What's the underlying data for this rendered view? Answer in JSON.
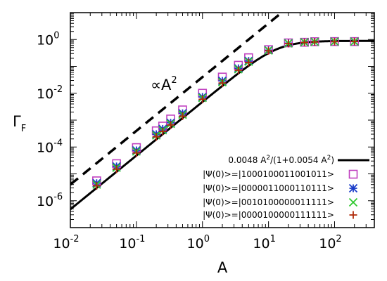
{
  "chart_data": {
    "type": "scatter",
    "xlabel": "A",
    "ylabel": "Γ",
    "ylabel_sub": "F",
    "xscale": "log",
    "yscale": "log",
    "xlim": [
      0.01,
      400
    ],
    "ylim": [
      1e-07,
      10
    ],
    "grid": false,
    "legend_position": "bottom-right",
    "x_ticks": [
      {
        "base": "10",
        "exp": "-2"
      },
      {
        "base": "10",
        "exp": "-1"
      },
      {
        "base": "10",
        "exp": "0"
      },
      {
        "base": "10",
        "exp": "1"
      },
      {
        "base": "10",
        "exp": "2"
      }
    ],
    "y_ticks": [
      {
        "base": "10",
        "exp": "-6"
      },
      {
        "base": "10",
        "exp": "-4"
      },
      {
        "base": "10",
        "exp": "-2"
      },
      {
        "base": "10",
        "exp": "0"
      }
    ],
    "annotation": {
      "prefix": "∝A",
      "exp": "2"
    },
    "fit_line": {
      "label": "0.0048 A²/(1+0.0054 A²)",
      "label_parts": [
        "0.0048 A",
        "2",
        "/(1+0.0054 A",
        "2",
        ")"
      ],
      "coef_a": 0.0048,
      "coef_b": 0.0054,
      "color": "#000000"
    },
    "reference_line": {
      "description": "proportional to A^2",
      "coef": 0.04,
      "style": "dashed",
      "color": "#000000"
    },
    "series": [
      {
        "name": "|Ψ(0)>=|1000100011001011>",
        "marker": "square",
        "color": "#c040c0",
        "x": [
          0.025,
          0.05,
          0.1,
          0.2,
          0.25,
          0.33,
          0.5,
          1,
          2,
          3.5,
          5,
          10,
          20,
          35,
          50,
          100,
          200
        ],
        "y": [
          5.5e-06,
          2.4e-05,
          9.5e-05,
          0.0004,
          0.0006,
          0.0011,
          0.0024,
          0.01,
          0.04,
          0.11,
          0.21,
          0.42,
          0.75,
          0.79,
          0.83,
          0.84,
          0.84
        ]
      },
      {
        "name": "|Ψ(0)>=|0000011000110111>",
        "marker": "asterisk",
        "color": "#1a3cc8",
        "x": [
          0.025,
          0.05,
          0.1,
          0.2,
          0.25,
          0.33,
          0.5,
          1,
          2,
          3.5,
          5,
          10,
          20,
          35,
          50,
          100,
          200
        ],
        "y": [
          4.5e-06,
          1.9e-05,
          7.5e-05,
          0.0003,
          0.00047,
          0.0008,
          0.0018,
          0.0073,
          0.029,
          0.085,
          0.16,
          0.4,
          0.73,
          0.79,
          0.82,
          0.84,
          0.84
        ]
      },
      {
        "name": "|Ψ(0)>=|0010100000011111>",
        "marker": "cross",
        "color": "#2ec82e",
        "x": [
          0.025,
          0.05,
          0.1,
          0.2,
          0.25,
          0.33,
          0.5,
          1,
          2,
          3.5,
          5,
          10,
          20,
          35,
          50,
          100,
          200
        ],
        "y": [
          4e-06,
          1.7e-05,
          6.8e-05,
          0.00027,
          0.00042,
          0.00073,
          0.0016,
          0.0067,
          0.026,
          0.078,
          0.15,
          0.39,
          0.72,
          0.79,
          0.82,
          0.84,
          0.84
        ]
      },
      {
        "name": "|Ψ(0)>=|0000100000111111>",
        "marker": "plus",
        "color": "#b02a0a",
        "x": [
          0.025,
          0.05,
          0.1,
          0.2,
          0.25,
          0.33,
          0.5,
          1,
          2,
          3.5,
          5,
          10,
          20,
          35,
          50,
          100,
          200
        ],
        "y": [
          3.6e-06,
          1.5e-05,
          6e-05,
          0.00024,
          0.00038,
          0.00066,
          0.0014,
          0.006,
          0.024,
          0.072,
          0.14,
          0.38,
          0.71,
          0.78,
          0.81,
          0.83,
          0.84
        ]
      }
    ]
  }
}
